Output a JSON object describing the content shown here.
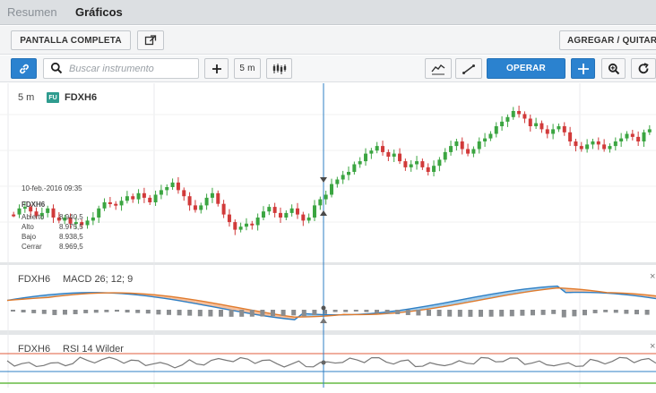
{
  "tabs": [
    {
      "label": "Resumen"
    },
    {
      "label": "Gráficos"
    }
  ],
  "toolbar1": {
    "full_screen": "PANTALLA COMPLETA",
    "add_remove": "AGREGAR / QUITAR"
  },
  "toolbar2": {
    "search_placeholder": "Buscar instrumento",
    "interval": "5 m",
    "operar": "OPERAR"
  },
  "chart": {
    "interval": "5 m",
    "instrument_badge": "FU",
    "instrument": "FDXH6",
    "tooltip": {
      "date": "10-feb.-2016 09:35",
      "symbol": "FDXH6",
      "rows": [
        {
          "label": "Abierto",
          "value": "8.940,5"
        },
        {
          "label": "Alto",
          "value": "8.975,5"
        },
        {
          "label": "Bajo",
          "value": "8.938,5"
        },
        {
          "label": "Cerrar",
          "value": "8.969,5"
        }
      ]
    },
    "macd_panel": {
      "symbol": "FDXH6",
      "label": "MACD 26; 12; 9"
    },
    "rsi_panel": {
      "symbol": "FDXH6",
      "label": "RSI 14 Wilder"
    },
    "colors": {
      "up": "#3ba541",
      "down": "#d13a3a",
      "macd_fill": "#8fc3e8",
      "signal_fill": "#f5b48a",
      "macd_line": "#2f7fc4",
      "signal_line": "#e07b2d",
      "rsi_line": "#777777",
      "rsi_band_red": "#e25c3d",
      "rsi_band_blue": "#2f7fc4",
      "crosshair": "#2f7fc4"
    }
  },
  "chart_data": {
    "type": "candlestick",
    "instrument": "FDXH6",
    "interval": "5 m",
    "candles_close_relative": [
      0.78,
      0.74,
      0.73,
      0.76,
      0.79,
      0.77,
      0.74,
      0.8,
      0.82,
      0.8,
      0.84,
      0.83,
      0.85,
      0.82,
      0.8,
      0.74,
      0.7,
      0.71,
      0.72,
      0.69,
      0.66,
      0.68,
      0.64,
      0.67,
      0.7,
      0.65,
      0.62,
      0.6,
      0.57,
      0.62,
      0.66,
      0.72,
      0.75,
      0.72,
      0.67,
      0.64,
      0.71,
      0.78,
      0.83,
      0.88,
      0.86,
      0.84,
      0.85,
      0.8,
      0.76,
      0.73,
      0.77,
      0.8,
      0.77,
      0.74,
      0.78,
      0.82,
      0.8,
      0.72,
      0.68,
      0.65,
      0.58,
      0.55,
      0.52,
      0.5,
      0.45,
      0.43,
      0.38,
      0.36,
      0.33,
      0.37,
      0.4,
      0.38,
      0.43,
      0.47,
      0.45,
      0.43,
      0.47,
      0.5,
      0.46,
      0.42,
      0.37,
      0.33,
      0.3,
      0.35,
      0.38,
      0.35,
      0.3,
      0.28,
      0.25,
      0.2,
      0.17,
      0.14,
      0.1,
      0.12,
      0.15,
      0.2,
      0.18,
      0.22,
      0.25,
      0.22,
      0.2,
      0.24,
      0.3,
      0.33,
      0.35,
      0.32,
      0.3,
      0.32,
      0.35,
      0.33,
      0.3,
      0.28,
      0.25,
      0.27,
      0.3,
      0.24,
      0.22
    ]
  }
}
